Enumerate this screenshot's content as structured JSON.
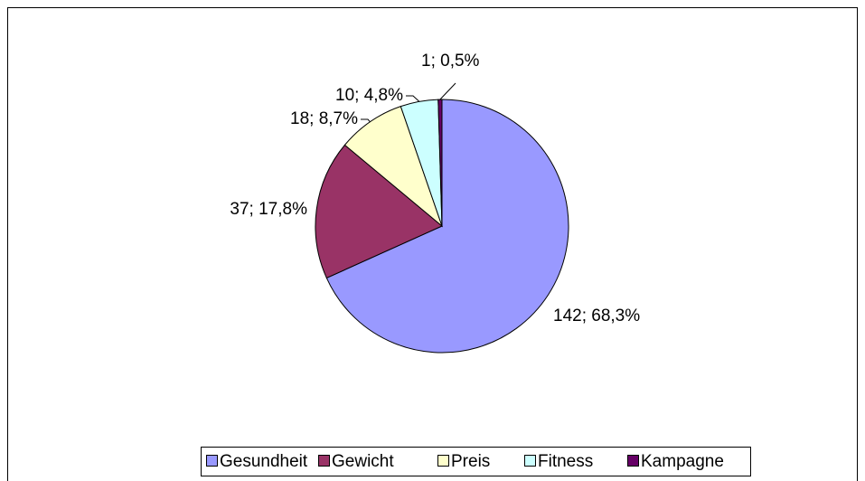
{
  "chart_data": {
    "type": "pie",
    "categories": [
      "Gesundheit",
      "Gewicht",
      "Preis",
      "Fitness",
      "Kampagne"
    ],
    "values": [
      142,
      37,
      18,
      10,
      1
    ],
    "value_labels": [
      "142; 68,3%",
      "37; 17,8%",
      "18; 8,7%",
      "10; 4,8%",
      "1; 0,5%"
    ],
    "colors": [
      "#9999ff",
      "#993366",
      "#ffffcc",
      "#ccffff",
      "#660066"
    ],
    "legend": "bottom"
  }
}
